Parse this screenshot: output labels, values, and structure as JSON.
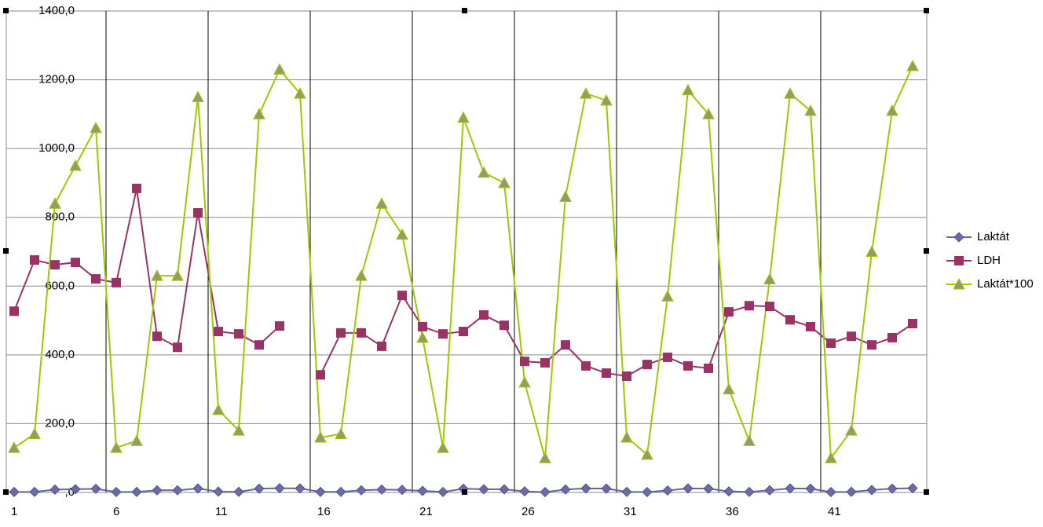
{
  "chart_data": {
    "type": "line",
    "categories": [
      "1",
      null,
      null,
      null,
      null,
      "6",
      null,
      null,
      null,
      null,
      "11",
      null,
      null,
      null,
      null,
      "16",
      null,
      null,
      null,
      null,
      "21",
      null,
      null,
      null,
      null,
      "26",
      null,
      null,
      null,
      null,
      "31",
      null,
      null,
      null,
      null,
      "36",
      null,
      null,
      null,
      null,
      "41",
      null,
      null,
      null,
      null
    ],
    "series": [
      {
        "name": "Laktát",
        "color": "#666699",
        "marker": "diamond",
        "marker_color": "#6b6ba8",
        "values": [
          1.3,
          1.7,
          8.4,
          9.5,
          10.6,
          1.3,
          1.5,
          6.3,
          6.3,
          11.5,
          2.4,
          1.8,
          11.0,
          12.3,
          11.6,
          1.6,
          1.7,
          6.3,
          8.4,
          7.5,
          4.5,
          1.3,
          10.9,
          9.3,
          9.0,
          3.2,
          1.0,
          8.6,
          11.6,
          11.4,
          1.6,
          1.1,
          5.7,
          11.7,
          11.0,
          3.0,
          1.5,
          6.2,
          11.6,
          11.1,
          1.0,
          1.8,
          7.0,
          11.1,
          12.4
        ]
      },
      {
        "name": "LDH",
        "color": "#993366",
        "marker": "square",
        "marker_color": "#993366",
        "values": [
          527,
          676,
          662,
          669,
          621,
          610,
          884,
          454,
          422,
          813,
          468,
          461,
          429,
          484,
          null,
          342,
          464,
          464,
          425,
          573,
          482,
          461,
          468,
          516,
          486,
          381,
          377,
          429,
          368,
          347,
          338,
          372,
          393,
          368,
          361,
          525,
          543,
          541,
          502,
          482,
          434,
          454,
          429,
          450,
          491
        ]
      },
      {
        "name": "Laktát*100",
        "color": "#99cc00",
        "marker": "triangle",
        "marker_color": "#999966",
        "values": [
          130,
          170,
          840,
          950,
          1060,
          130,
          150,
          630,
          630,
          1150,
          240,
          180,
          1100,
          1230,
          1160,
          160,
          170,
          630,
          840,
          750,
          450,
          130,
          1090,
          930,
          900,
          320,
          100,
          860,
          1160,
          1140,
          160,
          110,
          570,
          1170,
          1100,
          300,
          150,
          620,
          1160,
          1110,
          100,
          180,
          700,
          1110,
          1240
        ]
      }
    ],
    "ylim": [
      0,
      1400
    ],
    "yticks": [
      {
        "value": 0,
        "label": ",0"
      },
      {
        "value": 200,
        "label": "200,0"
      },
      {
        "value": 400,
        "label": "400,0"
      },
      {
        "value": 600,
        "label": "600,0"
      },
      {
        "value": 800,
        "label": "800,0"
      },
      {
        "value": 1000,
        "label": "1000,0"
      },
      {
        "value": 1200,
        "label": "1200,0"
      },
      {
        "value": 1400,
        "label": "1400,0"
      }
    ],
    "grid": true,
    "legend": "right"
  }
}
